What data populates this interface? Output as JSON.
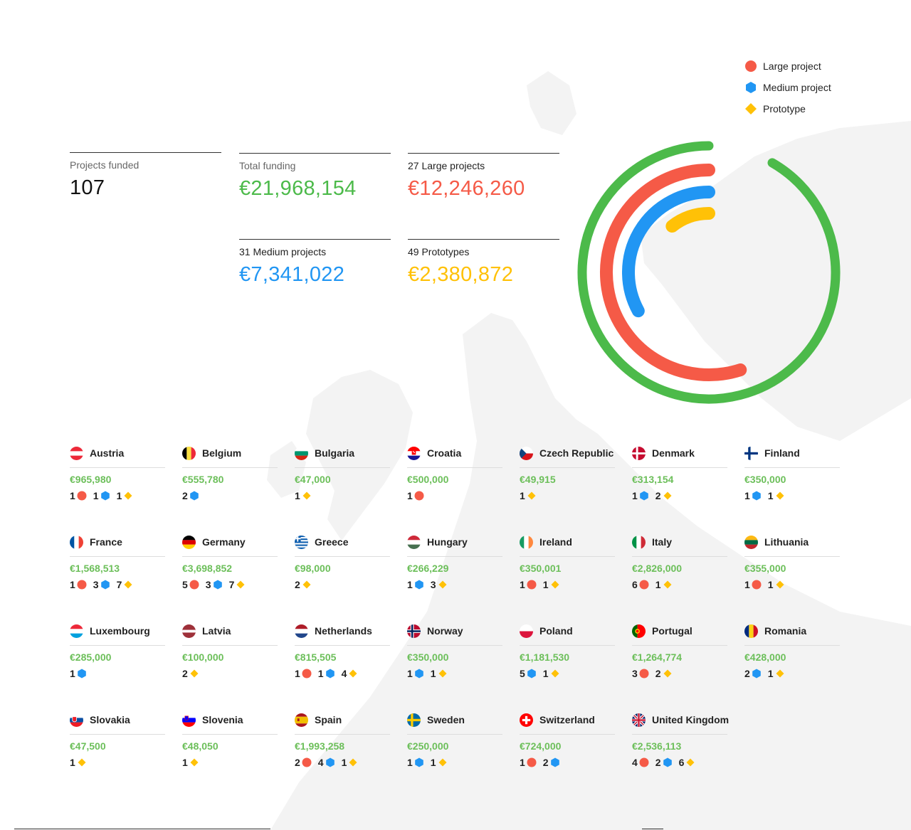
{
  "legend": [
    {
      "label": "Large project",
      "shape": "circle",
      "color": "#f55a47"
    },
    {
      "label": "Medium project",
      "shape": "hexagon",
      "color": "#2196f3"
    },
    {
      "label": "Prototype",
      "shape": "diamond",
      "color": "#ffc107"
    }
  ],
  "stats": {
    "projects_funded": {
      "label": "Projects funded",
      "value": "107"
    },
    "total_funding": {
      "label": "Total funding",
      "value": "€21,968,154"
    },
    "large": {
      "label": "27 Large projects",
      "value": "€12,246,260"
    },
    "medium": {
      "label": "31 Medium projects",
      "value": "€7,341,022"
    },
    "prototypes": {
      "label": "49 Prototypes",
      "value": "€2,380,872"
    }
  },
  "colors": {
    "green": "#4cba4a",
    "red": "#f55a47",
    "blue": "#2196f3",
    "yellow": "#ffc107",
    "amount_green": "#6cbf5a"
  },
  "chart_data": {
    "type": "radial-bar",
    "total": 21968154,
    "series": [
      {
        "name": "Total funding",
        "value": 21968154,
        "color": "#4cba4a"
      },
      {
        "name": "Large projects",
        "value": 12246260,
        "color": "#f55a47"
      },
      {
        "name": "Medium projects",
        "value": 7341022,
        "color": "#2196f3"
      },
      {
        "name": "Prototypes",
        "value": 2380872,
        "color": "#ffc107"
      }
    ]
  },
  "countries": [
    {
      "name": "Austria",
      "amount": "€965,980",
      "flag": "austria",
      "counts": [
        {
          "n": "1",
          "type": "large"
        },
        {
          "n": "1",
          "type": "medium"
        },
        {
          "n": "1",
          "type": "prototype"
        }
      ]
    },
    {
      "name": "Belgium",
      "amount": "€555,780",
      "flag": "belgium",
      "counts": [
        {
          "n": "2",
          "type": "medium"
        }
      ]
    },
    {
      "name": "Bulgaria",
      "amount": "€47,000",
      "flag": "bulgaria",
      "counts": [
        {
          "n": "1",
          "type": "prototype"
        }
      ]
    },
    {
      "name": "Croatia",
      "amount": "€500,000",
      "flag": "croatia",
      "counts": [
        {
          "n": "1",
          "type": "large"
        }
      ]
    },
    {
      "name": "Czech Republic",
      "amount": "€49,915",
      "flag": "czech",
      "counts": [
        {
          "n": "1",
          "type": "prototype"
        }
      ]
    },
    {
      "name": "Denmark",
      "amount": "€313,154",
      "flag": "denmark",
      "counts": [
        {
          "n": "1",
          "type": "medium"
        },
        {
          "n": "2",
          "type": "prototype"
        }
      ]
    },
    {
      "name": "Finland",
      "amount": "€350,000",
      "flag": "finland",
      "counts": [
        {
          "n": "1",
          "type": "medium"
        },
        {
          "n": "1",
          "type": "prototype"
        }
      ]
    },
    {
      "name": "France",
      "amount": "€1,568,513",
      "flag": "france",
      "counts": [
        {
          "n": "1",
          "type": "large"
        },
        {
          "n": "3",
          "type": "medium"
        },
        {
          "n": "7",
          "type": "prototype"
        }
      ]
    },
    {
      "name": "Germany",
      "amount": "€3,698,852",
      "flag": "germany",
      "counts": [
        {
          "n": "5",
          "type": "large"
        },
        {
          "n": "3",
          "type": "medium"
        },
        {
          "n": "7",
          "type": "prototype"
        }
      ]
    },
    {
      "name": "Greece",
      "amount": "€98,000",
      "flag": "greece",
      "counts": [
        {
          "n": "2",
          "type": "prototype"
        }
      ]
    },
    {
      "name": "Hungary",
      "amount": "€266,229",
      "flag": "hungary",
      "counts": [
        {
          "n": "1",
          "type": "medium"
        },
        {
          "n": "3",
          "type": "prototype"
        }
      ]
    },
    {
      "name": "Ireland",
      "amount": "€350,001",
      "flag": "ireland",
      "counts": [
        {
          "n": "1",
          "type": "large"
        },
        {
          "n": "1",
          "type": "prototype"
        }
      ]
    },
    {
      "name": "Italy",
      "amount": "€2,826,000",
      "flag": "italy",
      "counts": [
        {
          "n": "6",
          "type": "large"
        },
        {
          "n": "1",
          "type": "prototype"
        }
      ]
    },
    {
      "name": "Lithuania",
      "amount": "€355,000",
      "flag": "lithuania",
      "counts": [
        {
          "n": "1",
          "type": "large"
        },
        {
          "n": "1",
          "type": "prototype"
        }
      ]
    },
    {
      "name": "Luxembourg",
      "amount": "€285,000",
      "flag": "luxembourg",
      "counts": [
        {
          "n": "1",
          "type": "medium"
        }
      ]
    },
    {
      "name": "Latvia",
      "amount": "€100,000",
      "flag": "latvia",
      "counts": [
        {
          "n": "2",
          "type": "prototype"
        }
      ]
    },
    {
      "name": "Netherlands",
      "amount": "€815,505",
      "flag": "netherlands",
      "counts": [
        {
          "n": "1",
          "type": "large"
        },
        {
          "n": "1",
          "type": "medium"
        },
        {
          "n": "4",
          "type": "prototype"
        }
      ]
    },
    {
      "name": "Norway",
      "amount": "€350,000",
      "flag": "norway",
      "counts": [
        {
          "n": "1",
          "type": "medium"
        },
        {
          "n": "1",
          "type": "prototype"
        }
      ]
    },
    {
      "name": "Poland",
      "amount": "€1,181,530",
      "flag": "poland",
      "counts": [
        {
          "n": "5",
          "type": "medium"
        },
        {
          "n": "1",
          "type": "prototype"
        }
      ]
    },
    {
      "name": "Portugal",
      "amount": "€1,264,774",
      "flag": "portugal",
      "counts": [
        {
          "n": "3",
          "type": "large"
        },
        {
          "n": "2",
          "type": "prototype"
        }
      ]
    },
    {
      "name": "Romania",
      "amount": "€428,000",
      "flag": "romania",
      "counts": [
        {
          "n": "2",
          "type": "medium"
        },
        {
          "n": "1",
          "type": "prototype"
        }
      ]
    },
    {
      "name": "Slovakia",
      "amount": "€47,500",
      "flag": "slovakia",
      "counts": [
        {
          "n": "1",
          "type": "prototype"
        }
      ]
    },
    {
      "name": "Slovenia",
      "amount": "€48,050",
      "flag": "slovenia",
      "counts": [
        {
          "n": "1",
          "type": "prototype"
        }
      ]
    },
    {
      "name": "Spain",
      "amount": "€1,993,258",
      "flag": "spain",
      "counts": [
        {
          "n": "2",
          "type": "large"
        },
        {
          "n": "4",
          "type": "medium"
        },
        {
          "n": "1",
          "type": "prototype"
        }
      ]
    },
    {
      "name": "Sweden",
      "amount": "€250,000",
      "flag": "sweden",
      "counts": [
        {
          "n": "1",
          "type": "medium"
        },
        {
          "n": "1",
          "type": "prototype"
        }
      ]
    },
    {
      "name": "Switzerland",
      "amount": "€724,000",
      "flag": "switzerland",
      "counts": [
        {
          "n": "1",
          "type": "large"
        },
        {
          "n": "2",
          "type": "medium"
        }
      ]
    },
    {
      "name": "United Kingdom",
      "amount": "€2,536,113",
      "flag": "uk",
      "counts": [
        {
          "n": "4",
          "type": "large"
        },
        {
          "n": "2",
          "type": "medium"
        },
        {
          "n": "6",
          "type": "prototype"
        }
      ]
    }
  ]
}
